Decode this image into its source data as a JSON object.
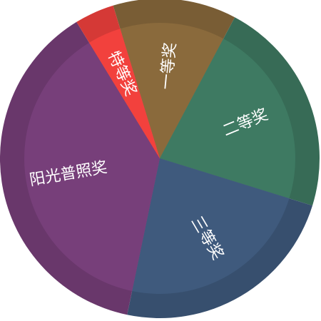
{
  "chart_data": {
    "type": "pie",
    "title": "",
    "start_angle_deg": -17,
    "direction": "clockwise",
    "slices": [
      {
        "label": "一等奖",
        "value": 12.5,
        "color": "#8a6a3c"
      },
      {
        "label": "二等奖",
        "value": 22.0,
        "color": "#3e7a62"
      },
      {
        "label": "三等奖",
        "value": 23.5,
        "color": "#3f5a7d"
      },
      {
        "label": "阳光普照奖",
        "value": 38.0,
        "color": "#773f7a"
      },
      {
        "label": "特等奖",
        "value": 4.0,
        "color": "#f2413d"
      }
    ]
  }
}
